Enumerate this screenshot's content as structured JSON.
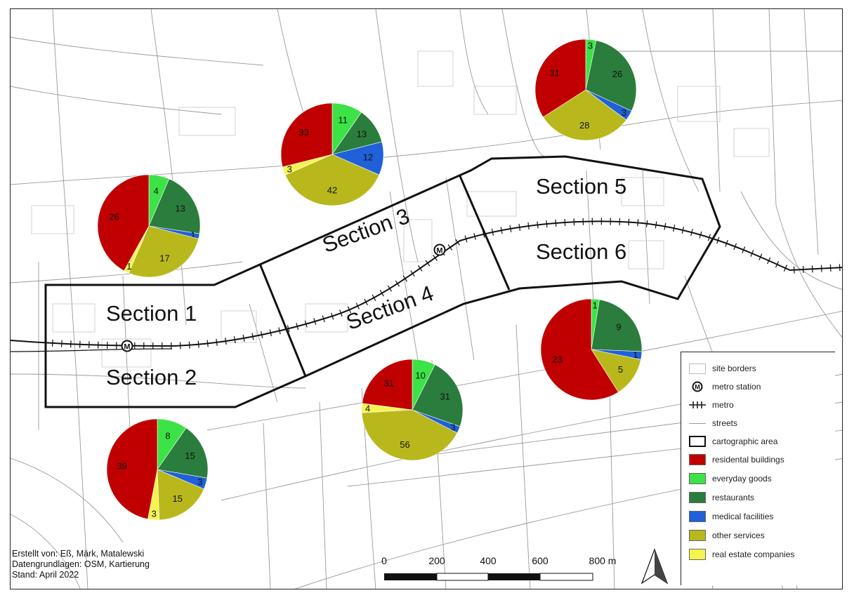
{
  "section_labels": [
    "Section 1",
    "Section 2",
    "Section 3",
    "Section 4",
    "Section 5",
    "Section 6"
  ],
  "legend": {
    "items": [
      {
        "symbol": "site-borders",
        "label": "site borders"
      },
      {
        "symbol": "metro-station",
        "label": "metro station"
      },
      {
        "symbol": "metro-line",
        "label": "metro"
      },
      {
        "symbol": "streets",
        "label": "streets"
      },
      {
        "symbol": "cartographic-area",
        "label": "cartographic area"
      },
      {
        "symbol": "swatch",
        "label": "residental buildings",
        "color": "#c00000"
      },
      {
        "symbol": "swatch",
        "label": "everyday goods",
        "color": "#3ce346"
      },
      {
        "symbol": "swatch",
        "label": "restaurants",
        "color": "#2a7d3c"
      },
      {
        "symbol": "swatch",
        "label": "medical facilities",
        "color": "#2060d8"
      },
      {
        "symbol": "swatch",
        "label": "other services",
        "color": "#b8b81c"
      },
      {
        "symbol": "swatch",
        "label": "real estate companies",
        "color": "#f4f450"
      }
    ]
  },
  "credits": {
    "line1": "Erstellt von: Eß, Märk, Matalewski",
    "line2": "Datengrundlagen: OSM, Kartierung",
    "line3": "Stand: April 2022"
  },
  "scale_bar": {
    "labels": [
      "0",
      "200",
      "400",
      "600",
      "800 m"
    ]
  },
  "metro_station_symbol": "M",
  "north_arrow": "north-arrow-icon",
  "colors": {
    "residential": "#c00000",
    "everyday_goods": "#3ce346",
    "restaurants": "#2a7d3c",
    "medical": "#2060d8",
    "other_services": "#b8b81c",
    "real_estate": "#f4f450"
  },
  "chart_data": [
    {
      "type": "pie",
      "near": "Section 1",
      "slices": [
        {
          "category": "everyday goods",
          "value": 4
        },
        {
          "category": "restaurants",
          "value": 13
        },
        {
          "category": "medical facilities",
          "value": 1
        },
        {
          "category": "other services",
          "value": 17
        },
        {
          "category": "real estate companies",
          "value": 1
        },
        {
          "category": "residental buildings",
          "value": 26
        }
      ]
    },
    {
      "type": "pie",
      "near": "Section 3",
      "slices": [
        {
          "category": "everyday goods",
          "value": 11
        },
        {
          "category": "restaurants",
          "value": 13
        },
        {
          "category": "medical facilities",
          "value": 12
        },
        {
          "category": "other services",
          "value": 42
        },
        {
          "category": "real estate companies",
          "value": 3
        },
        {
          "category": "residental buildings",
          "value": 33
        }
      ]
    },
    {
      "type": "pie",
      "near": "Section 5",
      "slices": [
        {
          "category": "everyday goods",
          "value": 3
        },
        {
          "category": "restaurants",
          "value": 26
        },
        {
          "category": "medical facilities",
          "value": 3
        },
        {
          "category": "other services",
          "value": 28
        },
        {
          "category": "residental buildings",
          "value": 31
        }
      ]
    },
    {
      "type": "pie",
      "near": "Section 6",
      "slices": [
        {
          "category": "everyday goods",
          "value": 1
        },
        {
          "category": "restaurants",
          "value": 9
        },
        {
          "category": "medical facilities",
          "value": 1
        },
        {
          "category": "other services",
          "value": 5
        },
        {
          "category": "residental buildings",
          "value": 23
        }
      ]
    },
    {
      "type": "pie",
      "near": "Section 4",
      "slices": [
        {
          "category": "everyday goods",
          "value": 10
        },
        {
          "category": "restaurants",
          "value": 31
        },
        {
          "category": "medical facilities",
          "value": 3
        },
        {
          "category": "other services",
          "value": 56
        },
        {
          "category": "real estate companies",
          "value": 4
        },
        {
          "category": "residental buildings",
          "value": 31
        }
      ]
    },
    {
      "type": "pie",
      "near": "Section 2",
      "slices": [
        {
          "category": "everyday goods",
          "value": 8
        },
        {
          "category": "restaurants",
          "value": 15
        },
        {
          "category": "medical facilities",
          "value": 3
        },
        {
          "category": "other services",
          "value": 15
        },
        {
          "category": "real estate companies",
          "value": 3
        },
        {
          "category": "residental buildings",
          "value": 39
        }
      ]
    }
  ]
}
